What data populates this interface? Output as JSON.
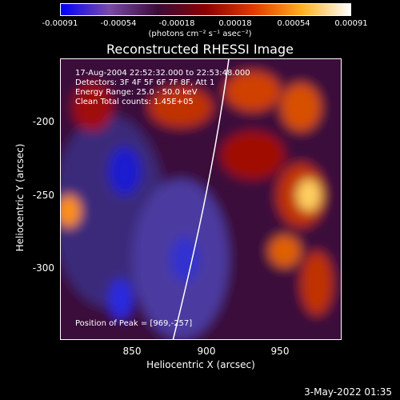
{
  "colorbar": {
    "ticks": [
      "-0.00091",
      "-0.00054",
      "-0.00018",
      "0.00018",
      "0.00054",
      "0.00091"
    ],
    "units": "(photons cm⁻² s⁻¹ asec⁻²)",
    "colors": [
      "#0000ff",
      "#7a4aa8",
      "#3a0b3a",
      "#8a0000",
      "#e23a00",
      "#ffb020",
      "#ffffff"
    ]
  },
  "plot": {
    "title": "Reconstructed RHESSI Image",
    "info_lines": [
      "17-Aug-2004 22:52:32.000 to 22:53:48.000",
      "Detectors: 3F 4F 5F 6F 7F 8F, Att 1",
      "Energy Range: 25.0 - 50.0 keV",
      "Clean    Total counts: 1.45E+05"
    ],
    "peak_text": "Position of Peak = [969,-257]",
    "xlabel": "Heliocentric X (arcsec)",
    "ylabel": "Heliocentric Y (arcsec)",
    "xticks": [
      "850",
      "900",
      "950"
    ],
    "yticks": [
      "-200",
      "-250",
      "-300"
    ]
  },
  "footer": {
    "timestamp": "3-May-2022 01:35"
  }
}
